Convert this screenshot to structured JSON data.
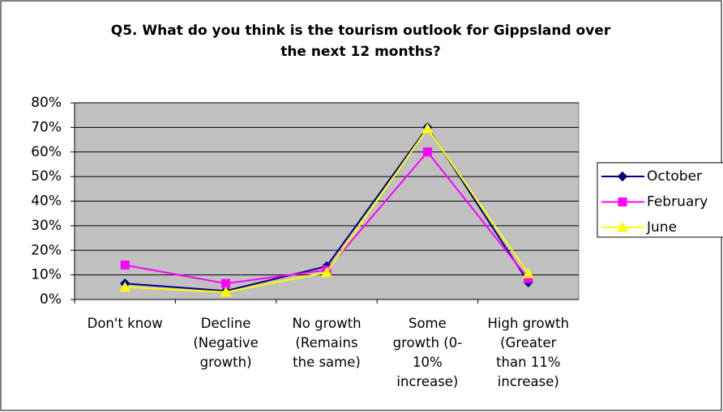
{
  "chart_data": {
    "type": "line",
    "title": "Q5. What do you think is the tourism outlook for Gippsland over\nthe next 12 months?",
    "categories": [
      "Don't know",
      "Decline\n(Negative\ngrowth)",
      "No growth\n(Remains\nthe same)",
      "Some\ngrowth (0-\n10%\nincrease)",
      "High growth\n(Greater\nthan 11%\nincrease)"
    ],
    "series": [
      {
        "name": "October",
        "color": "#000080",
        "marker": "diamond",
        "values": [
          6.5,
          3.5,
          13.5,
          70,
          7
        ]
      },
      {
        "name": "February",
        "color": "#ff00ff",
        "marker": "square",
        "values": [
          14,
          6.5,
          12,
          60,
          8.5
        ]
      },
      {
        "name": "June",
        "color": "#ffff00",
        "marker": "triangle",
        "values": [
          5,
          3,
          11,
          69.5,
          10.5
        ]
      }
    ],
    "ylim": [
      0,
      80
    ],
    "yticks": [
      {
        "value": 0,
        "label": "0%"
      },
      {
        "value": 10,
        "label": "10%"
      },
      {
        "value": 20,
        "label": "20%"
      },
      {
        "value": 30,
        "label": "30%"
      },
      {
        "value": 40,
        "label": "40%"
      },
      {
        "value": 50,
        "label": "50%"
      },
      {
        "value": 60,
        "label": "60%"
      },
      {
        "value": 70,
        "label": "70%"
      },
      {
        "value": 80,
        "label": "80%"
      }
    ],
    "grid": true,
    "plot_background": "#c0c0c0",
    "legend": "right"
  }
}
